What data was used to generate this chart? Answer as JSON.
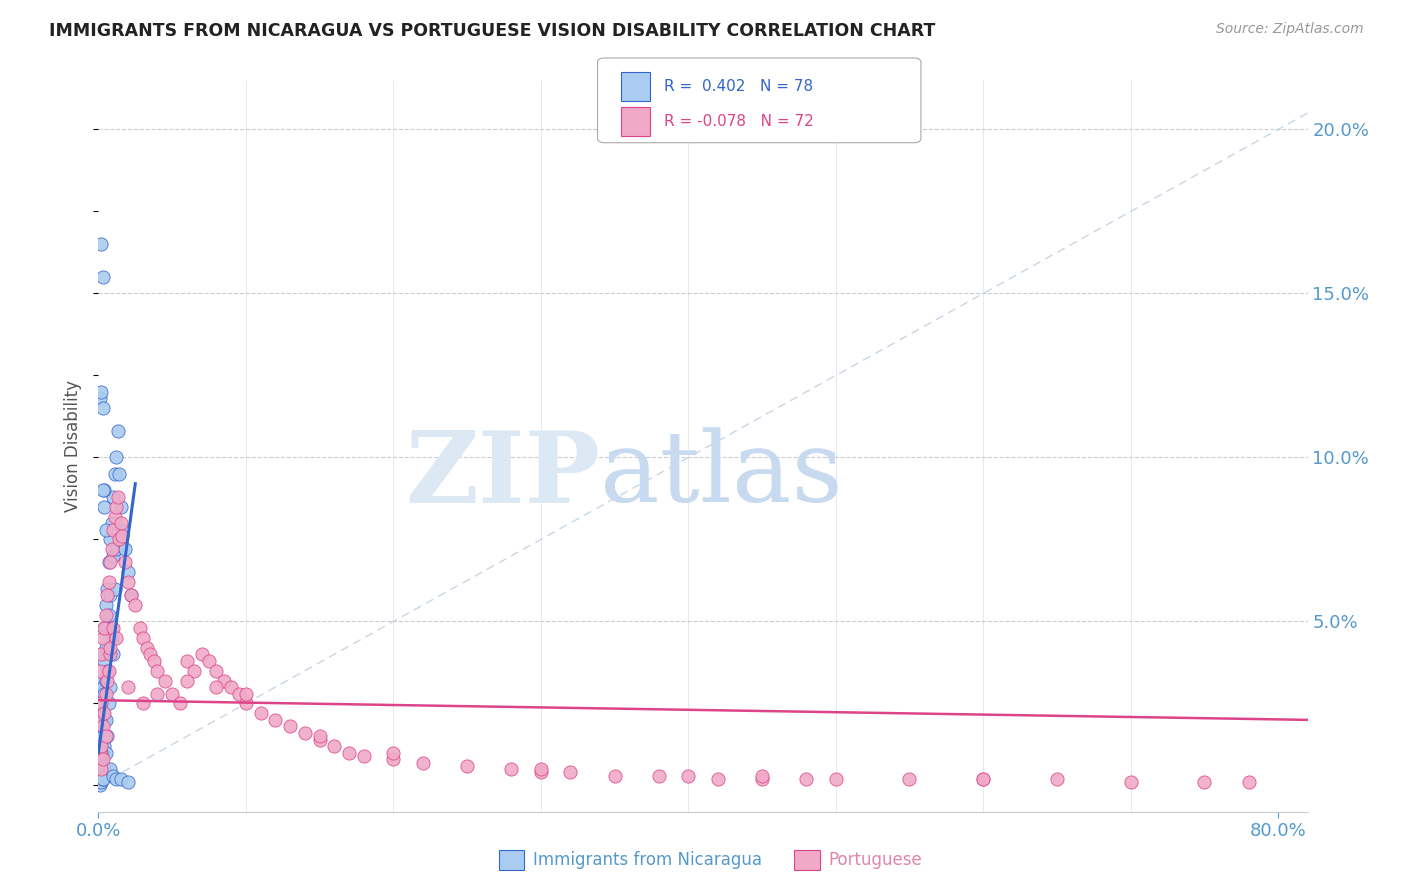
{
  "title": "IMMIGRANTS FROM NICARAGUA VS PORTUGUESE VISION DISABILITY CORRELATION CHART",
  "source": "Source: ZipAtlas.com",
  "ylabel": "Vision Disability",
  "blue_color": "#aaccf0",
  "pink_color": "#f0aac8",
  "blue_line_color": "#3366cc",
  "pink_line_color": "#dd4488",
  "diag_line_color": "#bbccdd",
  "title_color": "#222222",
  "axis_label_color": "#5599cc",
  "background_color": "#ffffff",
  "xlim": [
    0.0,
    0.82
  ],
  "ylim": [
    -0.008,
    0.215
  ],
  "blue_scatter_x": [
    0.001,
    0.001,
    0.001,
    0.001,
    0.001,
    0.001,
    0.001,
    0.001,
    0.001,
    0.001,
    0.002,
    0.002,
    0.002,
    0.002,
    0.002,
    0.002,
    0.002,
    0.002,
    0.003,
    0.003,
    0.003,
    0.003,
    0.003,
    0.003,
    0.003,
    0.004,
    0.004,
    0.004,
    0.004,
    0.004,
    0.004,
    0.005,
    0.005,
    0.005,
    0.005,
    0.005,
    0.006,
    0.006,
    0.006,
    0.006,
    0.007,
    0.007,
    0.007,
    0.008,
    0.008,
    0.008,
    0.009,
    0.009,
    0.01,
    0.01,
    0.01,
    0.011,
    0.011,
    0.012,
    0.012,
    0.013,
    0.014,
    0.015,
    0.016,
    0.018,
    0.02,
    0.022,
    0.001,
    0.002,
    0.003,
    0.004,
    0.002,
    0.003,
    0.003,
    0.004,
    0.005,
    0.002,
    0.004,
    0.003,
    0.008,
    0.01,
    0.012,
    0.015,
    0.02
  ],
  "blue_scatter_y": [
    0.028,
    0.022,
    0.015,
    0.01,
    0.008,
    0.005,
    0.003,
    0.002,
    0.001,
    0.0,
    0.032,
    0.025,
    0.018,
    0.012,
    0.008,
    0.005,
    0.003,
    0.001,
    0.04,
    0.03,
    0.022,
    0.015,
    0.01,
    0.006,
    0.002,
    0.048,
    0.038,
    0.028,
    0.02,
    0.012,
    0.005,
    0.055,
    0.042,
    0.032,
    0.02,
    0.01,
    0.06,
    0.048,
    0.035,
    0.015,
    0.068,
    0.052,
    0.025,
    0.075,
    0.058,
    0.03,
    0.08,
    0.045,
    0.088,
    0.07,
    0.04,
    0.095,
    0.06,
    0.1,
    0.072,
    0.108,
    0.095,
    0.085,
    0.078,
    0.072,
    0.065,
    0.058,
    0.118,
    0.12,
    0.115,
    0.09,
    0.165,
    0.155,
    0.09,
    0.085,
    0.078,
    0.01,
    0.003,
    0.002,
    0.005,
    0.003,
    0.002,
    0.002,
    0.001
  ],
  "pink_scatter_x": [
    0.001,
    0.001,
    0.001,
    0.002,
    0.002,
    0.002,
    0.003,
    0.003,
    0.004,
    0.004,
    0.005,
    0.005,
    0.006,
    0.006,
    0.007,
    0.007,
    0.008,
    0.008,
    0.009,
    0.01,
    0.01,
    0.011,
    0.012,
    0.013,
    0.014,
    0.015,
    0.016,
    0.018,
    0.02,
    0.022,
    0.025,
    0.028,
    0.03,
    0.033,
    0.035,
    0.038,
    0.04,
    0.045,
    0.05,
    0.055,
    0.06,
    0.065,
    0.07,
    0.075,
    0.08,
    0.085,
    0.09,
    0.095,
    0.1,
    0.11,
    0.12,
    0.13,
    0.14,
    0.15,
    0.16,
    0.17,
    0.18,
    0.2,
    0.22,
    0.25,
    0.28,
    0.3,
    0.32,
    0.35,
    0.38,
    0.4,
    0.42,
    0.45,
    0.48,
    0.5,
    0.55,
    0.6,
    0.65,
    0.7,
    0.75,
    0.78,
    0.002,
    0.003,
    0.005,
    0.008,
    0.012,
    0.02,
    0.03,
    0.04,
    0.06,
    0.08,
    0.1,
    0.15,
    0.2,
    0.3,
    0.45,
    0.6
  ],
  "pink_scatter_y": [
    0.035,
    0.02,
    0.01,
    0.04,
    0.025,
    0.012,
    0.045,
    0.018,
    0.048,
    0.022,
    0.052,
    0.028,
    0.058,
    0.032,
    0.062,
    0.035,
    0.068,
    0.04,
    0.072,
    0.078,
    0.048,
    0.082,
    0.085,
    0.088,
    0.075,
    0.08,
    0.076,
    0.068,
    0.062,
    0.058,
    0.055,
    0.048,
    0.045,
    0.042,
    0.04,
    0.038,
    0.035,
    0.032,
    0.028,
    0.025,
    0.038,
    0.035,
    0.04,
    0.038,
    0.035,
    0.032,
    0.03,
    0.028,
    0.025,
    0.022,
    0.02,
    0.018,
    0.016,
    0.014,
    0.012,
    0.01,
    0.009,
    0.008,
    0.007,
    0.006,
    0.005,
    0.004,
    0.004,
    0.003,
    0.003,
    0.003,
    0.002,
    0.002,
    0.002,
    0.002,
    0.002,
    0.002,
    0.002,
    0.001,
    0.001,
    0.001,
    0.005,
    0.008,
    0.015,
    0.042,
    0.045,
    0.03,
    0.025,
    0.028,
    0.032,
    0.03,
    0.028,
    0.015,
    0.01,
    0.005,
    0.003,
    0.002
  ],
  "ytick_vals": [
    0.0,
    0.05,
    0.1,
    0.15,
    0.2
  ],
  "ytick_labels": [
    "",
    "5.0%",
    "10.0%",
    "15.0%",
    "20.0%"
  ]
}
